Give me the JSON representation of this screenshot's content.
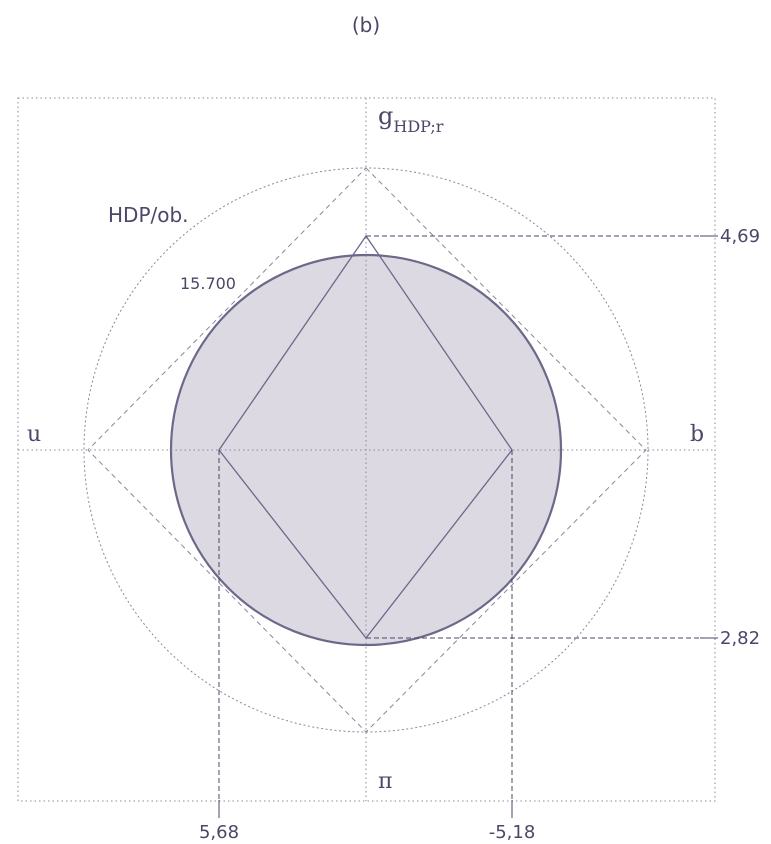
{
  "panel_label": "(b)",
  "axes": {
    "top_label": "g",
    "top_label_sub": "HDP;r",
    "bottom_label": "π",
    "left_label": "u",
    "right_label": "b"
  },
  "annotations": {
    "outer_circle_label": "HDP/ob.",
    "inner_circle_label": "15.700"
  },
  "tick_values": {
    "right_upper": "4,69",
    "right_lower": "2,82",
    "bottom_left": "5,68",
    "bottom_right": "-5,18"
  },
  "colors": {
    "ink": "#4a4768",
    "fill": "#dcd9e2",
    "dotted": "#8a879c"
  }
}
